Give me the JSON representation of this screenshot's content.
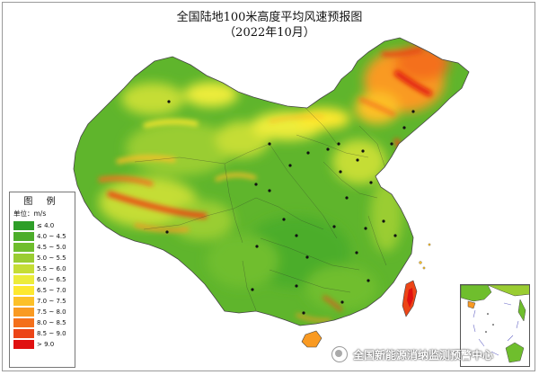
{
  "title": {
    "line1": "全国陆地100米高度平均风速预报图",
    "line2": "（2022年10月）"
  },
  "legend": {
    "heading": "图 例",
    "unit_label": "单位：",
    "unit": "m/s",
    "items": [
      {
        "label": "≤ 4.0",
        "color": "#2e9e28"
      },
      {
        "label": "4.0 ~ 4.5",
        "color": "#4cad2a"
      },
      {
        "label": "4.5 ~ 5.0",
        "color": "#6fbe2d"
      },
      {
        "label": "5.0 ~ 5.5",
        "color": "#9acd32"
      },
      {
        "label": "5.5 ~ 6.0",
        "color": "#c5dd35"
      },
      {
        "label": "6.0 ~ 6.5",
        "color": "#ecec3a"
      },
      {
        "label": "6.5 ~ 7.0",
        "color": "#fde82f"
      },
      {
        "label": "7.0 ~ 7.5",
        "color": "#fcc028"
      },
      {
        "label": "7.5 ~ 8.0",
        "color": "#f99a22"
      },
      {
        "label": "8.0 ~ 8.5",
        "color": "#f4701c"
      },
      {
        "label": "8.5 ~ 9.0",
        "color": "#ec4517"
      },
      {
        "label": "> 9.0",
        "color": "#e01010"
      }
    ]
  },
  "watermark": {
    "text": "全国新能源消纳监测预警中心"
  }
}
